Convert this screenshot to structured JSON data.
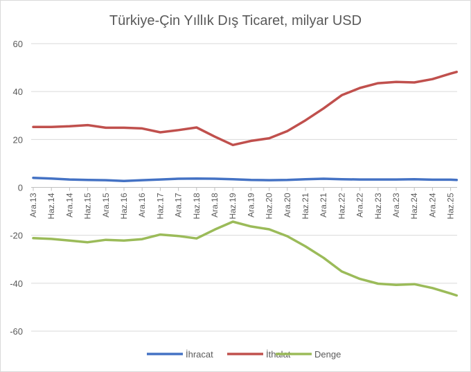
{
  "chart_data": {
    "type": "line",
    "title": "Türkiye-Çin Yıllık Dış Ticaret, milyar USD",
    "xlabel": "",
    "ylabel": "",
    "ylim": [
      -60,
      60
    ],
    "yticks": [
      -60,
      -40,
      -20,
      0,
      20,
      40,
      60
    ],
    "grid": true,
    "legend_position": "bottom",
    "x": [
      "2013-12",
      "2014-06",
      "2014-12",
      "2015-06",
      "2015-12",
      "2016-06",
      "2016-12",
      "2017-06",
      "2017-12",
      "2018-06",
      "2018-12",
      "2019-06",
      "2019-12",
      "2020-06",
      "2020-12",
      "2021-06",
      "2021-12",
      "2022-06",
      "2022-12",
      "2023-06",
      "2023-12",
      "2024-06",
      "2024-12",
      "2025-06",
      "2025-08"
    ],
    "xtick_labels": [
      "Ara.13",
      "Haz.14",
      "Ara.14",
      "Haz.15",
      "Ara.15",
      "Haz.16",
      "Ara.16",
      "Haz.17",
      "Ara.17",
      "Haz.18",
      "Ara.18",
      "Haz.19",
      "Ara.19",
      "Haz.20",
      "Ara.20",
      "Haz.21",
      "Ara.21",
      "Haz.22",
      "Ara.22",
      "Haz.23",
      "Ara.23",
      "Haz.24",
      "Ara.24",
      "Haz.25"
    ],
    "series": [
      {
        "name": "İhracat",
        "color": "#4472C4",
        "values": [
          4.0,
          3.7,
          3.3,
          3.1,
          3.0,
          2.7,
          3.0,
          3.3,
          3.6,
          3.7,
          3.6,
          3.4,
          3.1,
          3.0,
          3.1,
          3.4,
          3.6,
          3.4,
          3.3,
          3.3,
          3.3,
          3.4,
          3.2,
          3.2,
          3.1
        ]
      },
      {
        "name": "İthalat",
        "color": "#C0504D",
        "values": [
          25.2,
          25.2,
          25.5,
          26.0,
          24.9,
          24.9,
          24.6,
          23.0,
          23.9,
          25.0,
          21.2,
          17.7,
          19.4,
          20.5,
          23.5,
          28.0,
          33.0,
          38.5,
          41.5,
          43.5,
          44.0,
          43.8,
          45.2,
          47.5,
          48.2
        ]
      },
      {
        "name": "Denge",
        "color": "#9BBB59",
        "values": [
          -21.2,
          -21.5,
          -22.2,
          -22.9,
          -21.9,
          -22.2,
          -21.6,
          -19.7,
          -20.3,
          -21.3,
          -17.6,
          -14.3,
          -16.3,
          -17.5,
          -20.4,
          -24.6,
          -29.4,
          -35.1,
          -38.2,
          -40.2,
          -40.7,
          -40.4,
          -42.0,
          -44.3,
          -45.1
        ]
      }
    ]
  }
}
